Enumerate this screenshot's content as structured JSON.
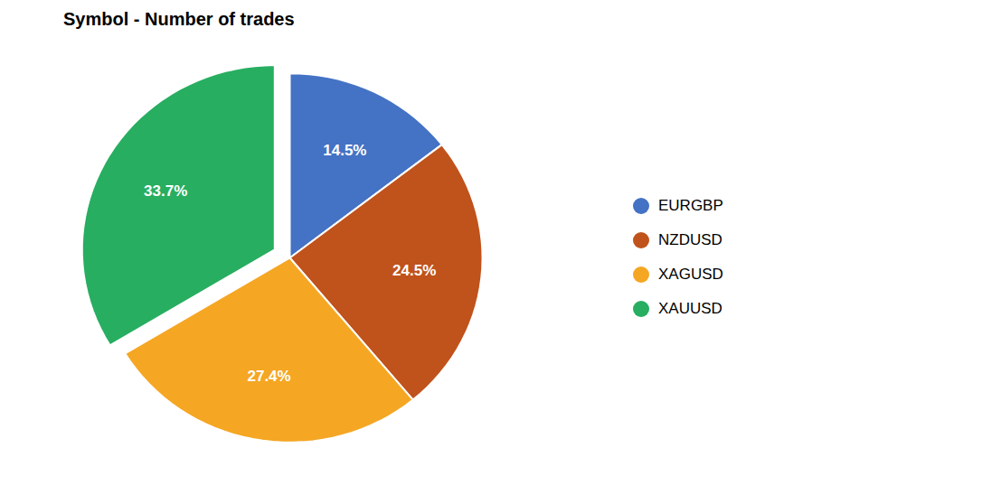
{
  "chart_data": {
    "type": "pie",
    "title": "Symbol - Number of trades",
    "categories": [
      "EURGBP",
      "NZDUSD",
      "XAGUSD",
      "XAUUSD"
    ],
    "values": [
      14.5,
      24.5,
      27.4,
      33.7
    ],
    "value_labels": [
      "14.5%",
      "24.5%",
      "27.4%",
      "33.7%"
    ],
    "colors": [
      "#4472C4",
      "#C0521B",
      "#F5A623",
      "#27AE60"
    ],
    "data_labels": true,
    "legend": "right"
  }
}
